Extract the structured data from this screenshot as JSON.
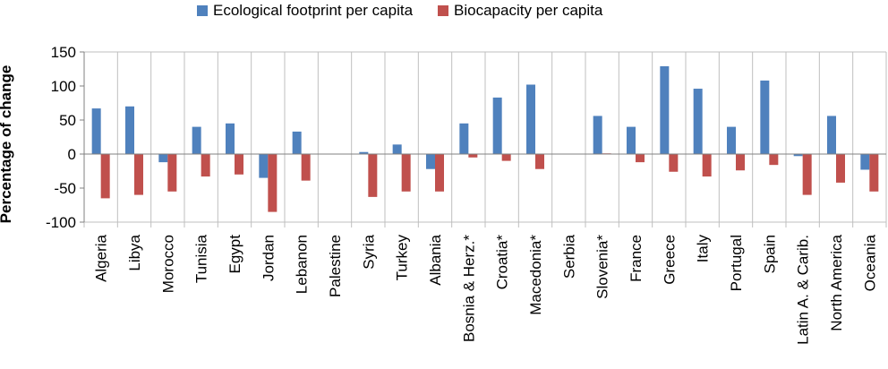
{
  "chart_data": {
    "type": "bar",
    "title": "",
    "xlabel": "",
    "ylabel": "Percentage of change",
    "ylim": [
      -100,
      150
    ],
    "yticks": [
      -100,
      -50,
      0,
      50,
      100,
      150
    ],
    "grid": false,
    "legend_position": "top",
    "categories": [
      "Algeria",
      "Libya",
      "Morocco",
      "Tunisia",
      "Egypt",
      "Jordan",
      "Lebanon",
      "Palestine",
      "Syria",
      "Turkey",
      "Albania",
      "Bosnia & Herz.*",
      "Croatia*",
      "Macedonia*",
      "Serbia",
      "Slovenia*",
      "France",
      "Greece",
      "Italy",
      "Portugal",
      "Spain",
      "Latin A. & Carib.",
      "North America",
      "Oceania"
    ],
    "series": [
      {
        "name": "Ecological footprint per capita",
        "color": "#4F81BD",
        "values": [
          67,
          70,
          -12,
          40,
          45,
          -35,
          33,
          null,
          3,
          14,
          -22,
          45,
          83,
          102,
          null,
          56,
          40,
          129,
          96,
          40,
          108,
          -3,
          56,
          -23
        ]
      },
      {
        "name": "Biocapacity per capita",
        "color": "#C0504D",
        "values": [
          -65,
          -60,
          -55,
          -33,
          -30,
          -85,
          -39,
          null,
          -63,
          -55,
          -55,
          -5,
          -10,
          -22,
          null,
          1,
          -12,
          -26,
          -33,
          -24,
          -16,
          -60,
          -42,
          -55
        ]
      }
    ]
  }
}
